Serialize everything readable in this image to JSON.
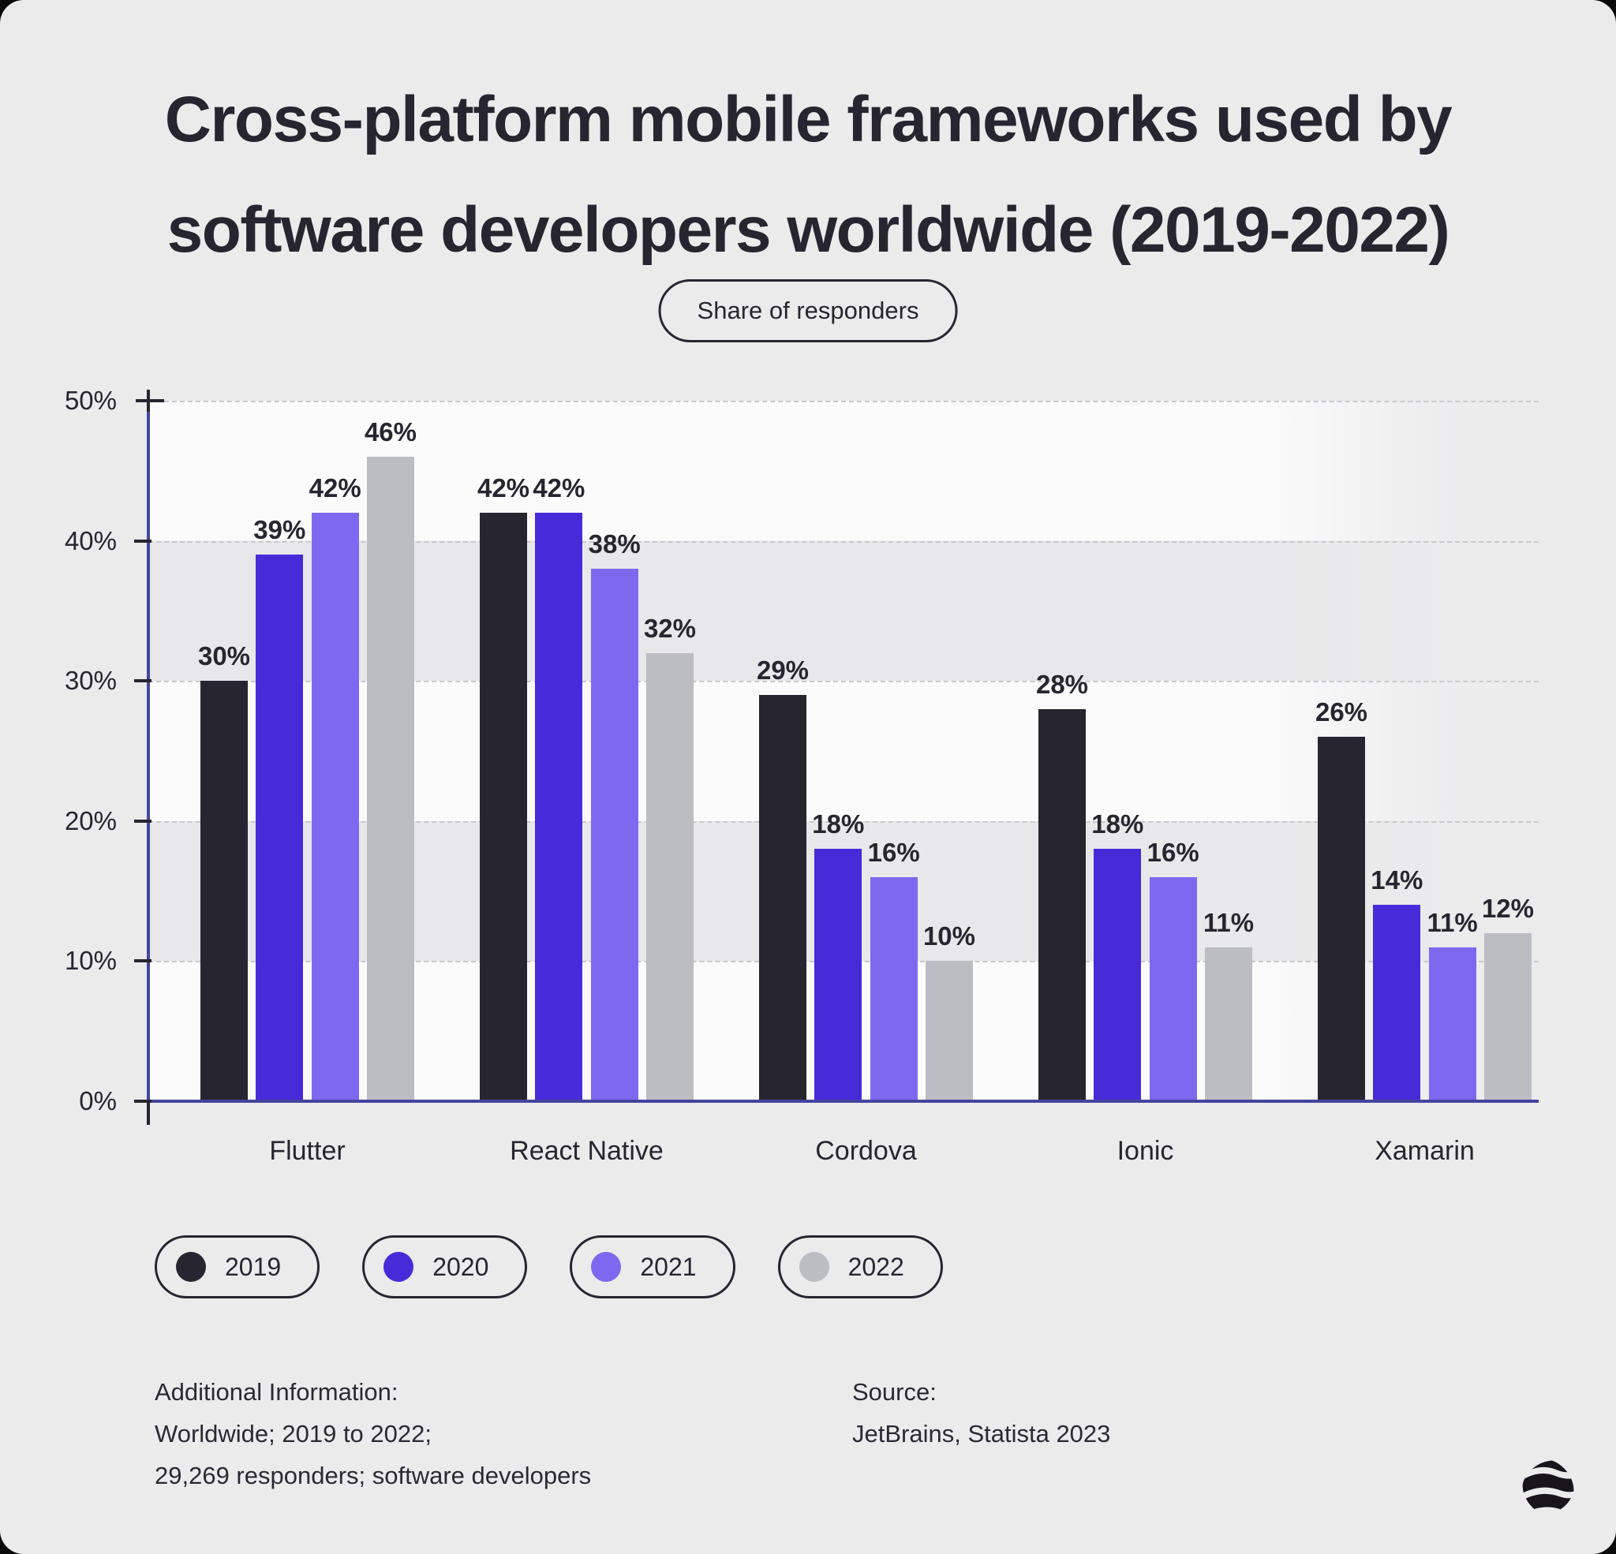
{
  "title": {
    "line1": "Cross-platform mobile frameworks used by",
    "line2": "software developers worldwide (2019-2022)"
  },
  "badge": {
    "label": "Share of responders"
  },
  "chart_data": {
    "type": "bar",
    "title": "Cross-platform mobile frameworks used by software developers worldwide (2019-2022)",
    "units_note": "Share of responders",
    "categories": [
      "Flutter",
      "React Native",
      "Cordova",
      "Ionic",
      "Xamarin"
    ],
    "series": [
      {
        "name": "2019",
        "color": "#27252f",
        "values": [
          30,
          42,
          29,
          28,
          26
        ]
      },
      {
        "name": "2020",
        "color": "#472bd9",
        "values": [
          39,
          42,
          18,
          18,
          14
        ]
      },
      {
        "name": "2021",
        "color": "#7d68ef",
        "values": [
          42,
          38,
          16,
          16,
          11
        ]
      },
      {
        "name": "2022",
        "color": "#bcbcc3",
        "values": [
          46,
          32,
          10,
          11,
          12
        ]
      }
    ],
    "value_suffix": "%",
    "ylim": [
      0,
      50
    ],
    "yticks": [
      "50%",
      "40%",
      "30%",
      "20%",
      "10%",
      "0%"
    ],
    "grid": "horizontal-dashed",
    "legend_position": "bottom",
    "colors": {
      "axis": "#44459e",
      "gridline": "#c9c9ce",
      "band_light": "#fbfbfc",
      "band_gray": "#e8e8ea",
      "text": "#27252f",
      "background": "#ebebec"
    }
  },
  "footer": {
    "additional_label": "Additional Information:",
    "additional_line1": "Worldwide; 2019 to 2022;",
    "additional_line2": "29,269 responders; software developers",
    "source_label": "Source:",
    "source_line": "JetBrains, Statista 2023"
  }
}
